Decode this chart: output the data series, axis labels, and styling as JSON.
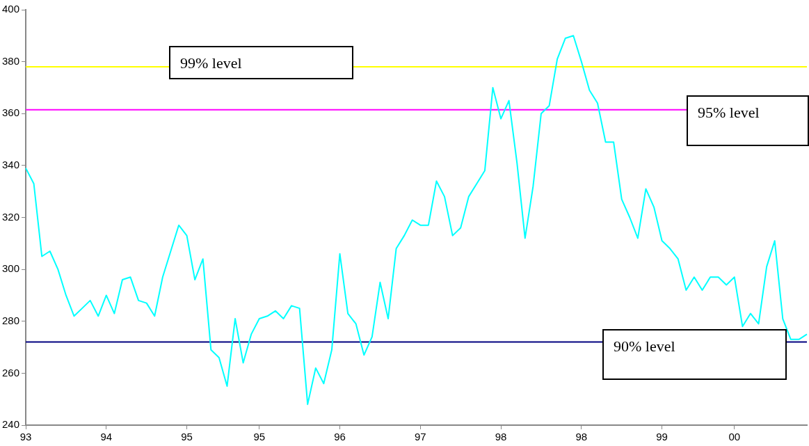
{
  "chart_data": {
    "type": "line",
    "categories": [
      "93",
      null,
      null,
      null,
      null,
      null,
      null,
      null,
      null,
      null,
      "94",
      null,
      null,
      null,
      null,
      null,
      null,
      null,
      null,
      null,
      "95",
      null,
      null,
      null,
      null,
      null,
      null,
      null,
      null,
      "95",
      null,
      null,
      null,
      null,
      null,
      null,
      null,
      null,
      null,
      "96",
      null,
      null,
      null,
      null,
      null,
      null,
      null,
      null,
      null,
      "97",
      null,
      null,
      null,
      null,
      null,
      null,
      null,
      null,
      null,
      "98",
      null,
      null,
      null,
      null,
      null,
      null,
      null,
      null,
      null,
      "98",
      null,
      null,
      null,
      null,
      null,
      null,
      null,
      null,
      null,
      "99",
      null,
      null,
      null,
      null,
      null,
      null,
      null,
      null,
      "00",
      null,
      null,
      null,
      null,
      null,
      null,
      null,
      null,
      null
    ],
    "series": [
      {
        "color": "#00ffff",
        "values": [
          339,
          333,
          305,
          307,
          300,
          290,
          282,
          285,
          288,
          282,
          290,
          283,
          296,
          297,
          288,
          287,
          282,
          297,
          307,
          317,
          313,
          296,
          304,
          269,
          266,
          255,
          281,
          264,
          275,
          281,
          282,
          284,
          281,
          286,
          285,
          248,
          262,
          256,
          269,
          306,
          283,
          279,
          267,
          274,
          295,
          281,
          308,
          313,
          319,
          317,
          317,
          334,
          328,
          313,
          316,
          328,
          333,
          338,
          370,
          358,
          365,
          341,
          312,
          332,
          360,
          363,
          381,
          389,
          390,
          380,
          369,
          364,
          349,
          349,
          327,
          320,
          312,
          331,
          324,
          311,
          308,
          304,
          292,
          297,
          292,
          297,
          297,
          294,
          297,
          278,
          283,
          279,
          301,
          311,
          281,
          273,
          273,
          275
        ]
      }
    ],
    "ylim": [
      240,
      400
    ],
    "yticks": [
      240,
      260,
      280,
      300,
      320,
      340,
      360,
      380,
      400
    ],
    "ref_lines": [
      {
        "axis": "y",
        "value": 378,
        "label": "99% level",
        "color": "#ffff00"
      },
      {
        "axis": "y",
        "value": 361.5,
        "label": "95% level",
        "color": "#ff00ff"
      },
      {
        "axis": "y",
        "value": 272,
        "label": "90% level",
        "color": "#000080"
      }
    ],
    "grid": false,
    "legend": false,
    "marker": "none"
  }
}
